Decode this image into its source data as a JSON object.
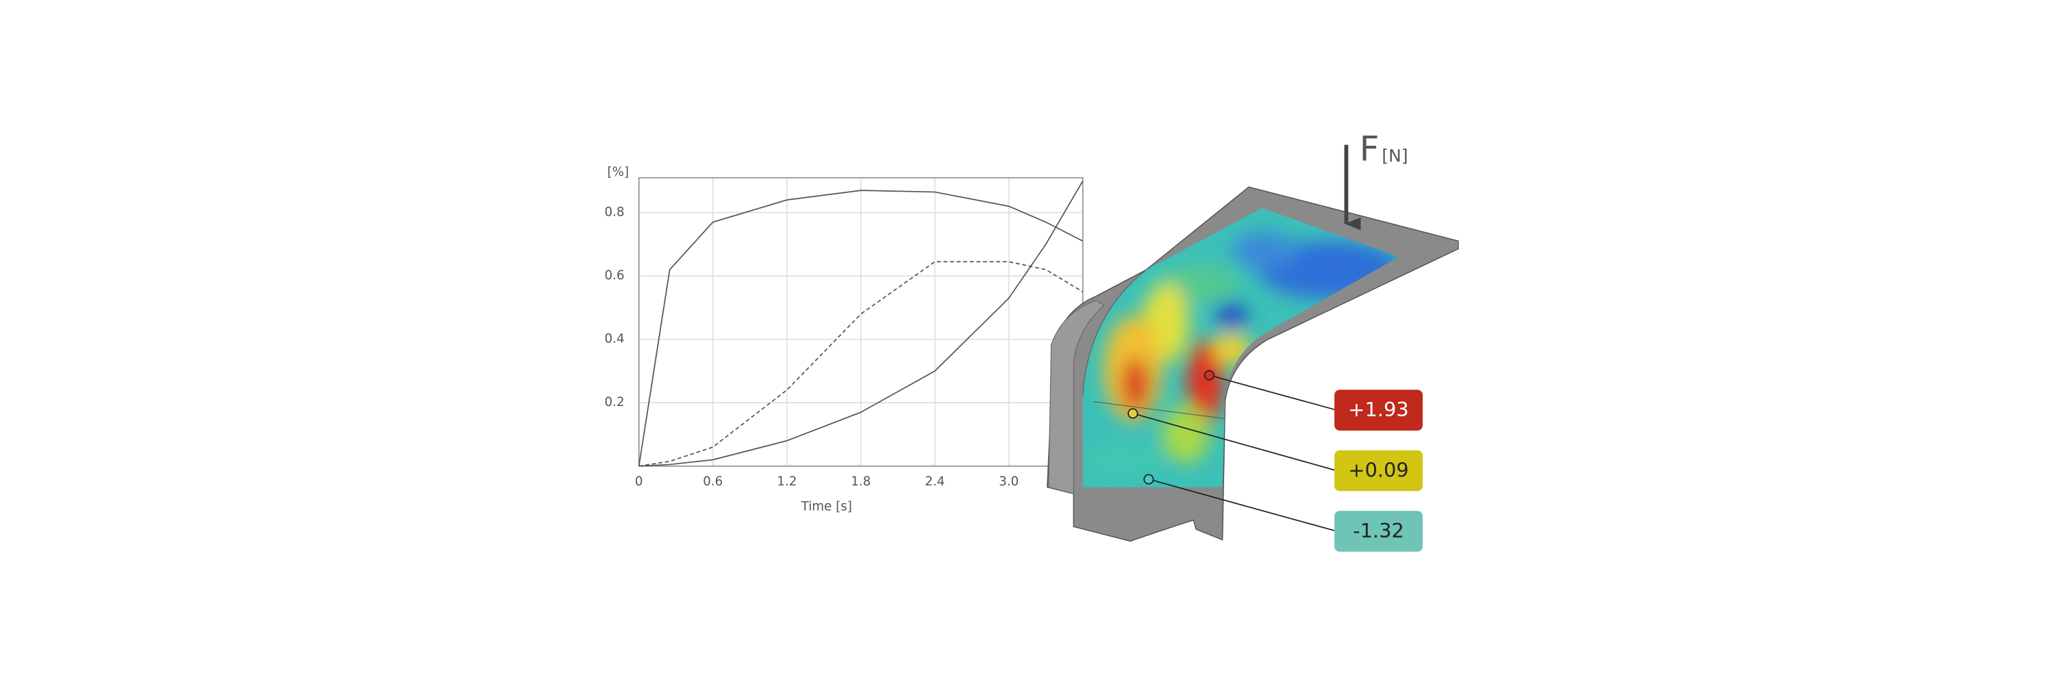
{
  "chart_data": {
    "type": "line",
    "y_label": "[%]",
    "x_label": "Time [s]",
    "x": [
      0,
      0.25,
      0.6,
      1.2,
      1.8,
      2.4,
      3.0,
      3.3,
      3.6
    ],
    "series": [
      {
        "color": "#555555",
        "dash": false,
        "values": [
          0,
          0.62,
          0.77,
          0.84,
          0.87,
          0.865,
          0.82,
          0.77,
          0.71
        ]
      },
      {
        "color": "#555555",
        "dash": true,
        "values": [
          0,
          0.015,
          0.06,
          0.24,
          0.48,
          0.645,
          0.645,
          0.62,
          0.55
        ]
      },
      {
        "color": "#555555",
        "dash": false,
        "values": [
          0,
          0.005,
          0.02,
          0.08,
          0.17,
          0.3,
          0.53,
          0.7,
          0.9
        ]
      }
    ],
    "xlim": [
      0,
      3.6
    ],
    "ylim": [
      0,
      0.91
    ],
    "xticks": [
      0,
      0.6,
      1.2,
      1.8,
      2.4,
      {
        "value": 3,
        "label": "3.0"
      }
    ],
    "yticks": [
      0.2,
      0.4,
      0.6,
      0.8
    ],
    "grid": true
  },
  "force_label": {
    "symbol": "F",
    "unit": "[N]"
  },
  "callouts": [
    {
      "label": "+1.93",
      "color": "#c0291c",
      "text_color": "#ffffff"
    },
    {
      "label": "+0.09",
      "color": "#d2c513",
      "text_color": "#222222"
    },
    {
      "label": "-1.32",
      "color": "#6ec4b5",
      "text_color": "#222222"
    }
  ]
}
